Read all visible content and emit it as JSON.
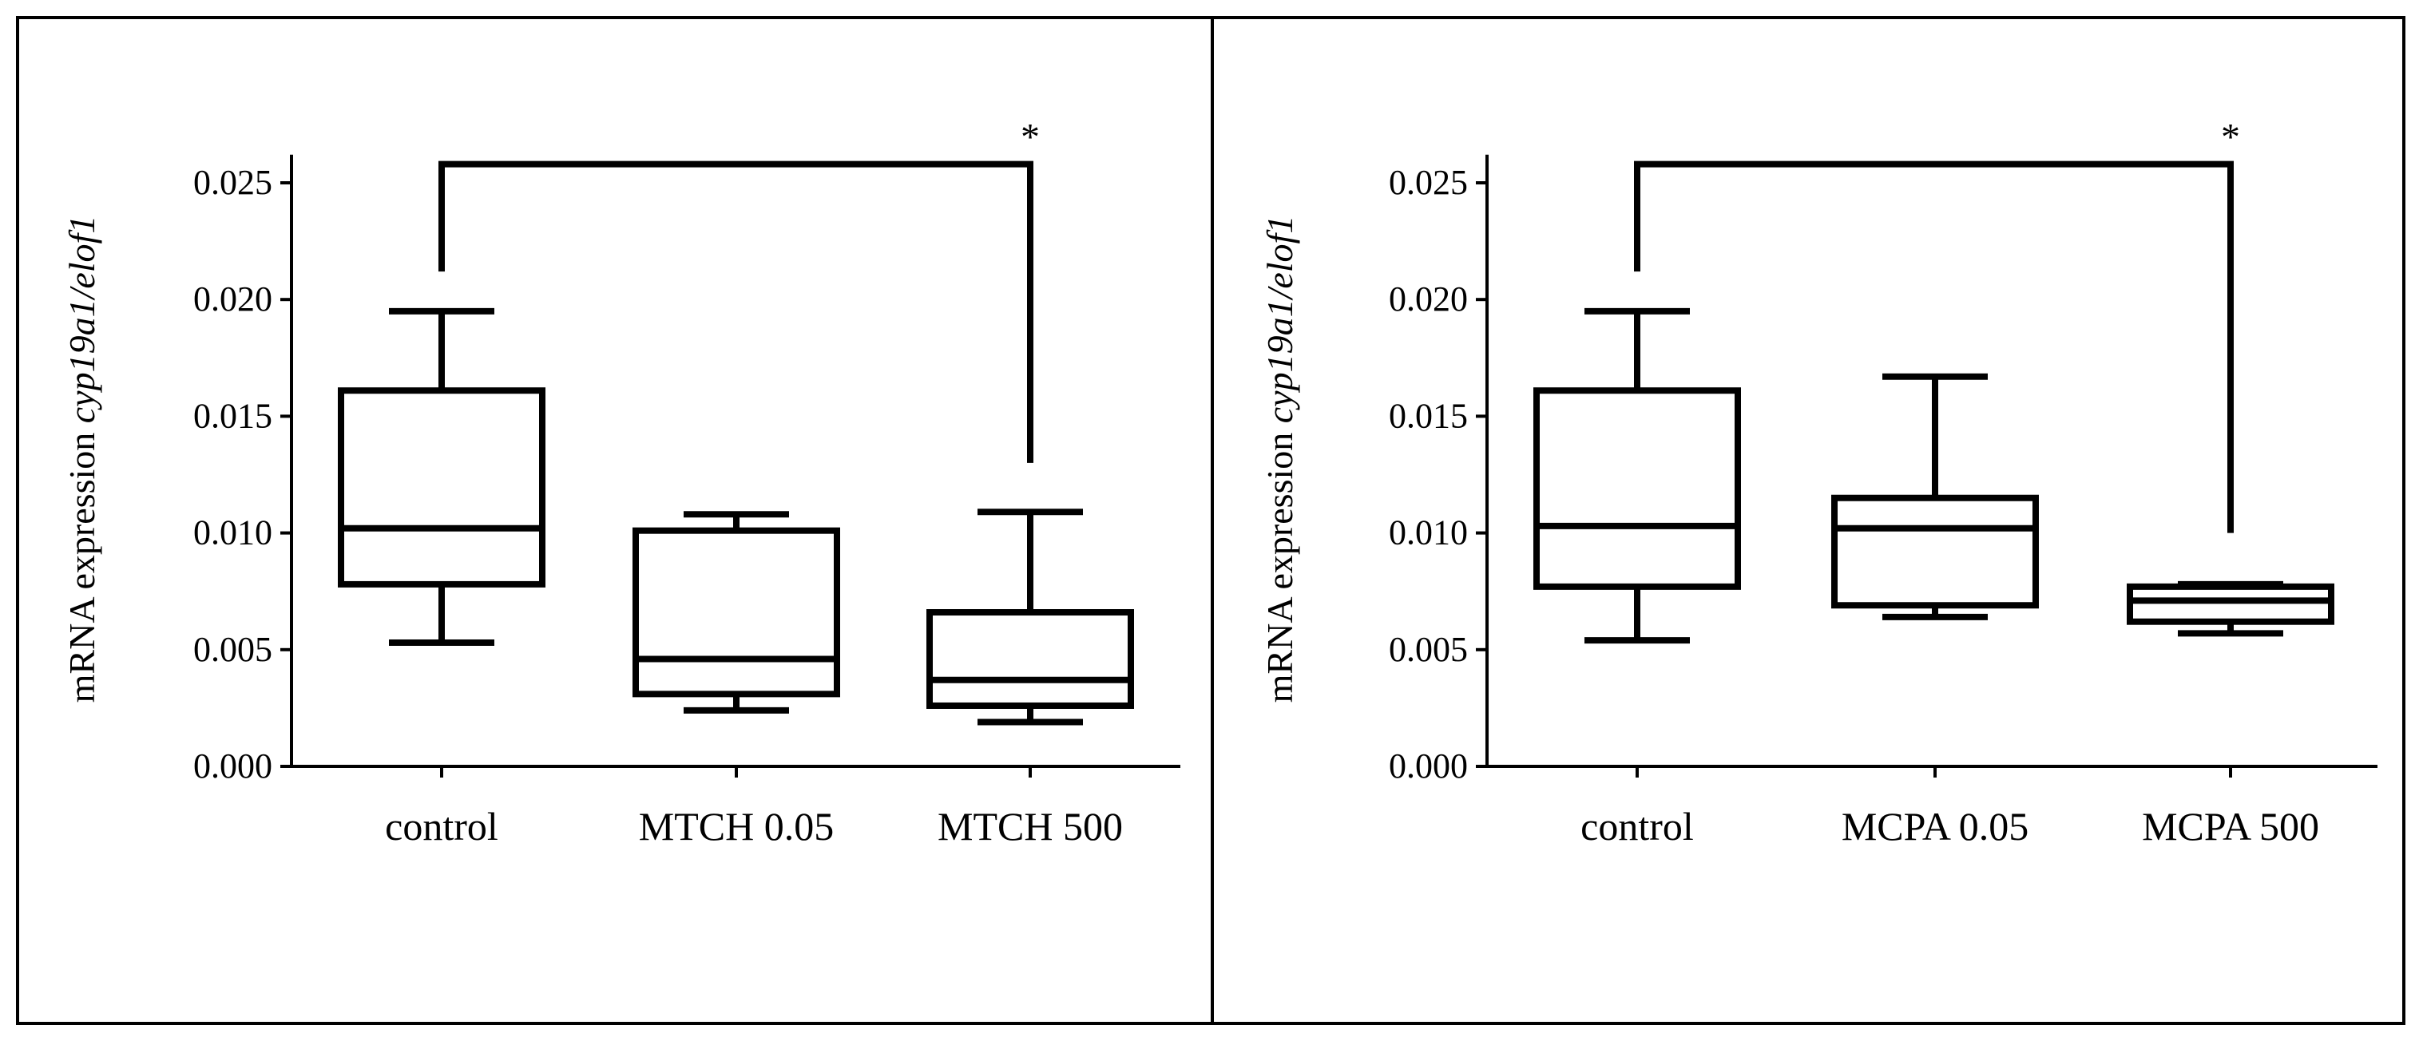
{
  "chart_data": [
    {
      "type": "box",
      "ylabel_prefix": "mRNA expression ",
      "ylabel_gene": "cyp19a1/elof1",
      "ylim": [
        0,
        0.026
      ],
      "yticks": [
        0.0,
        0.005,
        0.01,
        0.015,
        0.02,
        0.025
      ],
      "ytick_labels": [
        "0.000",
        "0.005",
        "0.010",
        "0.015",
        "0.020",
        "0.025"
      ],
      "categories": [
        "control",
        "MTCH 0.05",
        "MTCH 500"
      ],
      "boxes": [
        {
          "category": "control",
          "min": 0.0053,
          "q1": 0.0078,
          "median": 0.0102,
          "q3": 0.0161,
          "max": 0.0195
        },
        {
          "category": "MTCH 0.05",
          "min": 0.0024,
          "q1": 0.0031,
          "median": 0.0046,
          "q3": 0.0101,
          "max": 0.0108
        },
        {
          "category": "MTCH 500",
          "min": 0.0019,
          "q1": 0.0026,
          "median": 0.0037,
          "q3": 0.0066,
          "max": 0.0109
        }
      ],
      "significance": {
        "from": "control",
        "to": "MTCH 500",
        "label": "*",
        "level": 0.0258,
        "from_drop": 0.0212,
        "to_drop": 0.013
      }
    },
    {
      "type": "box",
      "ylabel_prefix": "mRNA expression ",
      "ylabel_gene": "cyp19a1/elof1",
      "ylim": [
        0,
        0.026
      ],
      "yticks": [
        0.0,
        0.005,
        0.01,
        0.015,
        0.02,
        0.025
      ],
      "ytick_labels": [
        "0.000",
        "0.005",
        "0.010",
        "0.015",
        "0.020",
        "0.025"
      ],
      "categories": [
        "control",
        "MCPA 0.05",
        "MCPA 500"
      ],
      "boxes": [
        {
          "category": "control",
          "min": 0.0054,
          "q1": 0.0077,
          "median": 0.0103,
          "q3": 0.0161,
          "max": 0.0195
        },
        {
          "category": "MCPA 0.05",
          "min": 0.0064,
          "q1": 0.0069,
          "median": 0.0102,
          "q3": 0.0115,
          "max": 0.0167
        },
        {
          "category": "MCPA 500",
          "min": 0.0057,
          "q1": 0.0062,
          "median": 0.0071,
          "q3": 0.0077,
          "max": 0.0078
        }
      ],
      "significance": {
        "from": "control",
        "to": "MCPA 500",
        "label": "*",
        "level": 0.0258,
        "from_drop": 0.0212,
        "to_drop": 0.01
      }
    }
  ]
}
